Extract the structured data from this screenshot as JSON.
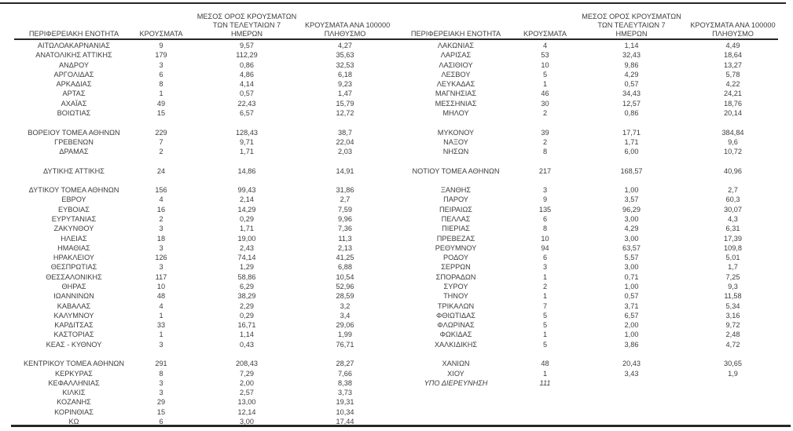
{
  "colors": {
    "background": "#ffffff",
    "text": "#3d3d3d",
    "rule": "#262626"
  },
  "headers": {
    "region": "ΠΕΡΙΦΕΡΕΙΑΚΗ ΕΝΟΤΗΤΑ",
    "cases": "ΚΡΟΥΣΜΑΤΑ",
    "avg7_line1": "ΜΕΣΟΣ ΟΡΟΣ ΚΡΟΥΣΜΑΤΩΝ",
    "avg7_line2": "ΤΩΝ ΤΕΛΕΥΤΑΙΩΝ 7",
    "avg7_line3": "ΗΜΕΡΩΝ",
    "per100k_line1": "ΚΡΟΥΣΜΑΤΑ ΑΝΑ 100000",
    "per100k_line2": "ΠΛΗΘΥΣΜΟ"
  },
  "left_table": {
    "rows": [
      {
        "region": "ΑΙΤΩΛΟΑΚΑΡΝΑΝΙΑΣ",
        "cases": "9",
        "avg7": "9,57",
        "per100k": "4,27"
      },
      {
        "region": "ΑΝΑΤΟΛΙΚΗΣ ΑΤΤΙΚΗΣ",
        "cases": "179",
        "avg7": "112,29",
        "per100k": "35,63"
      },
      {
        "region": "ΑΝΔΡΟΥ",
        "cases": "3",
        "avg7": "0,86",
        "per100k": "32,53"
      },
      {
        "region": "ΑΡΓΟΛΙΔΑΣ",
        "cases": "6",
        "avg7": "4,86",
        "per100k": "6,18"
      },
      {
        "region": "ΑΡΚΑΔΙΑΣ",
        "cases": "8",
        "avg7": "4,14",
        "per100k": "9,23"
      },
      {
        "region": "ΑΡΤΑΣ",
        "cases": "1",
        "avg7": "0,57",
        "per100k": "1,47"
      },
      {
        "region": "ΑΧΑΪΑΣ",
        "cases": "49",
        "avg7": "22,43",
        "per100k": "15,79"
      },
      {
        "region": "ΒΟΙΩΤΙΑΣ",
        "cases": "15",
        "avg7": "6,57",
        "per100k": "12,72"
      },
      {
        "blank": true
      },
      {
        "region": "ΒΟΡΕΙΟΥ ΤΟΜΕΑ ΑΘΗΝΩΝ",
        "cases": "229",
        "avg7": "128,43",
        "per100k": "38,7"
      },
      {
        "region": "ΓΡΕΒΕΝΩΝ",
        "cases": "7",
        "avg7": "9,71",
        "per100k": "22,04"
      },
      {
        "region": "ΔΡΑΜΑΣ",
        "cases": "2",
        "avg7": "1,71",
        "per100k": "2,03"
      },
      {
        "blank": true
      },
      {
        "region": "ΔΥΤΙΚΗΣ ΑΤΤΙΚΗΣ",
        "cases": "24",
        "avg7": "14,86",
        "per100k": "14,91"
      },
      {
        "blank": true
      },
      {
        "region": "ΔΥΤΙΚΟΥ ΤΟΜΕΑ ΑΘΗΝΩΝ",
        "cases": "156",
        "avg7": "99,43",
        "per100k": "31,86"
      },
      {
        "region": "ΕΒΡΟΥ",
        "cases": "4",
        "avg7": "2,14",
        "per100k": "2,7"
      },
      {
        "region": "ΕΥΒΟΙΑΣ",
        "cases": "16",
        "avg7": "14,29",
        "per100k": "7,59"
      },
      {
        "region": "ΕΥΡΥΤΑΝΙΑΣ",
        "cases": "2",
        "avg7": "0,29",
        "per100k": "9,96"
      },
      {
        "region": "ΖΑΚΥΝΘΟΥ",
        "cases": "3",
        "avg7": "1,71",
        "per100k": "7,36"
      },
      {
        "region": "ΗΛΕΙΑΣ",
        "cases": "18",
        "avg7": "19,00",
        "per100k": "11,3"
      },
      {
        "region": "ΗΜΑΘΙΑΣ",
        "cases": "3",
        "avg7": "2,43",
        "per100k": "2,13"
      },
      {
        "region": "ΗΡΑΚΛΕΙΟΥ",
        "cases": "126",
        "avg7": "74,14",
        "per100k": "41,25"
      },
      {
        "region": "ΘΕΣΠΡΩΤΙΑΣ",
        "cases": "3",
        "avg7": "1,29",
        "per100k": "6,88"
      },
      {
        "region": "ΘΕΣΣΑΛΟΝΙΚΗΣ",
        "cases": "117",
        "avg7": "58,86",
        "per100k": "10,54"
      },
      {
        "region": "ΘΗΡΑΣ",
        "cases": "10",
        "avg7": "6,29",
        "per100k": "52,96"
      },
      {
        "region": "ΙΩΑΝΝΙΝΩΝ",
        "cases": "48",
        "avg7": "38,29",
        "per100k": "28,59"
      },
      {
        "region": "ΚΑΒΑΛΑΣ",
        "cases": "4",
        "avg7": "2,29",
        "per100k": "3,2"
      },
      {
        "region": "ΚΑΛΥΜΝΟΥ",
        "cases": "1",
        "avg7": "0,29",
        "per100k": "3,4"
      },
      {
        "region": "ΚΑΡΔΙΤΣΑΣ",
        "cases": "33",
        "avg7": "16,71",
        "per100k": "29,06"
      },
      {
        "region": "ΚΑΣΤΟΡΙΑΣ",
        "cases": "1",
        "avg7": "1,14",
        "per100k": "1,99"
      },
      {
        "region": "ΚΕΑΣ - ΚΥΘΝΟΥ",
        "cases": "3",
        "avg7": "0,43",
        "per100k": "76,71"
      },
      {
        "blank": true
      },
      {
        "region": "ΚΕΝΤΡΙΚΟΥ ΤΟΜΕΑ ΑΘΗΝΩΝ",
        "cases": "291",
        "avg7": "208,43",
        "per100k": "28,27"
      },
      {
        "region": "ΚΕΡΚΥΡΑΣ",
        "cases": "8",
        "avg7": "7,29",
        "per100k": "7,66"
      },
      {
        "region": "ΚΕΦΑΛΛΗΝΙΑΣ",
        "cases": "3",
        "avg7": "2,00",
        "per100k": "8,38"
      },
      {
        "region": "ΚΙΛΚΙΣ",
        "cases": "3",
        "avg7": "2,57",
        "per100k": "3,73"
      },
      {
        "region": "ΚΟΖΑΝΗΣ",
        "cases": "29",
        "avg7": "13,00",
        "per100k": "19,31"
      },
      {
        "region": "ΚΟΡΙΝΘΙΑΣ",
        "cases": "15",
        "avg7": "12,14",
        "per100k": "10,34"
      },
      {
        "region": "ΚΩ",
        "cases": "6",
        "avg7": "3,00",
        "per100k": "17,44"
      }
    ]
  },
  "right_table": {
    "rows": [
      {
        "region": "ΛΑΚΩΝΙΑΣ",
        "cases": "4",
        "avg7": "1,14",
        "per100k": "4,49"
      },
      {
        "region": "ΛΑΡΙΣΑΣ",
        "cases": "53",
        "avg7": "32,43",
        "per100k": "18,64"
      },
      {
        "region": "ΛΑΣΙΘΙΟΥ",
        "cases": "10",
        "avg7": "9,86",
        "per100k": "13,27"
      },
      {
        "region": "ΛΕΣΒΟΥ",
        "cases": "5",
        "avg7": "4,29",
        "per100k": "5,78"
      },
      {
        "region": "ΛΕΥΚΑΔΑΣ",
        "cases": "1",
        "avg7": "0,57",
        "per100k": "4,22"
      },
      {
        "region": "ΜΑΓΝΗΣΙΑΣ",
        "cases": "46",
        "avg7": "34,43",
        "per100k": "24,21"
      },
      {
        "region": "ΜΕΣΣΗΝΙΑΣ",
        "cases": "30",
        "avg7": "12,57",
        "per100k": "18,76"
      },
      {
        "region": "ΜΗΛΟΥ",
        "cases": "2",
        "avg7": "0,86",
        "per100k": "20,14"
      },
      {
        "blank": true
      },
      {
        "region": "ΜΥΚΟΝΟΥ",
        "cases": "39",
        "avg7": "17,71",
        "per100k": "384,84"
      },
      {
        "region": "ΝΑΞΟΥ",
        "cases": "2",
        "avg7": "1,71",
        "per100k": "9,6"
      },
      {
        "region": "ΝΗΣΩΝ",
        "cases": "8",
        "avg7": "6,00",
        "per100k": "10,72"
      },
      {
        "blank": true
      },
      {
        "region": "ΝΟΤΙΟΥ ΤΟΜΕΑ ΑΘΗΝΩΝ",
        "cases": "217",
        "avg7": "168,57",
        "per100k": "40,96"
      },
      {
        "blank": true
      },
      {
        "region": "ΞΑΝΘΗΣ",
        "cases": "3",
        "avg7": "1,00",
        "per100k": "2,7"
      },
      {
        "region": "ΠΑΡΟΥ",
        "cases": "9",
        "avg7": "3,57",
        "per100k": "60,3"
      },
      {
        "region": "ΠΕΙΡΑΙΩΣ",
        "cases": "135",
        "avg7": "96,29",
        "per100k": "30,07"
      },
      {
        "region": "ΠΕΛΛΑΣ",
        "cases": "6",
        "avg7": "3,00",
        "per100k": "4,3"
      },
      {
        "region": "ΠΙΕΡΙΑΣ",
        "cases": "8",
        "avg7": "4,29",
        "per100k": "6,31"
      },
      {
        "region": "ΠΡΕΒΕΖΑΣ",
        "cases": "10",
        "avg7": "3,00",
        "per100k": "17,39"
      },
      {
        "region": "ΡΕΘΥΜΝΟΥ",
        "cases": "94",
        "avg7": "63,57",
        "per100k": "109,8"
      },
      {
        "region": "ΡΟΔΟΥ",
        "cases": "6",
        "avg7": "5,57",
        "per100k": "5,01"
      },
      {
        "region": "ΣΕΡΡΩΝ",
        "cases": "3",
        "avg7": "3,00",
        "per100k": "1,7"
      },
      {
        "region": "ΣΠΟΡΑΔΩΝ",
        "cases": "1",
        "avg7": "0,71",
        "per100k": "7,25"
      },
      {
        "region": "ΣΥΡΟΥ",
        "cases": "2",
        "avg7": "1,00",
        "per100k": "9,3"
      },
      {
        "region": "ΤΗΝΟΥ",
        "cases": "1",
        "avg7": "0,57",
        "per100k": "11,58"
      },
      {
        "region": "ΤΡΙΚΑΛΩΝ",
        "cases": "7",
        "avg7": "3,71",
        "per100k": "5,34"
      },
      {
        "region": "ΦΘΙΩΤΙΔΑΣ",
        "cases": "5",
        "avg7": "6,57",
        "per100k": "3,16"
      },
      {
        "region": "ΦΛΩΡΙΝΑΣ",
        "cases": "5",
        "avg7": "2,00",
        "per100k": "9,72"
      },
      {
        "region": "ΦΩΚΙΔΑΣ",
        "cases": "1",
        "avg7": "1,00",
        "per100k": "2,48"
      },
      {
        "region": "ΧΑΛΚΙΔΙΚΗΣ",
        "cases": "5",
        "avg7": "3,86",
        "per100k": "4,72"
      },
      {
        "blank": true
      },
      {
        "region": "ΧΑΝΙΩΝ",
        "cases": "48",
        "avg7": "20,43",
        "per100k": "30,65"
      },
      {
        "region": "ΧΙΟΥ",
        "cases": "1",
        "avg7": "3,43",
        "per100k": "1,9"
      },
      {
        "region": "ΥΠΟ ΔΙΕΡΕΥΝΗΣΗ",
        "cases": "111",
        "avg7": "",
        "per100k": "",
        "italic": true
      }
    ]
  }
}
